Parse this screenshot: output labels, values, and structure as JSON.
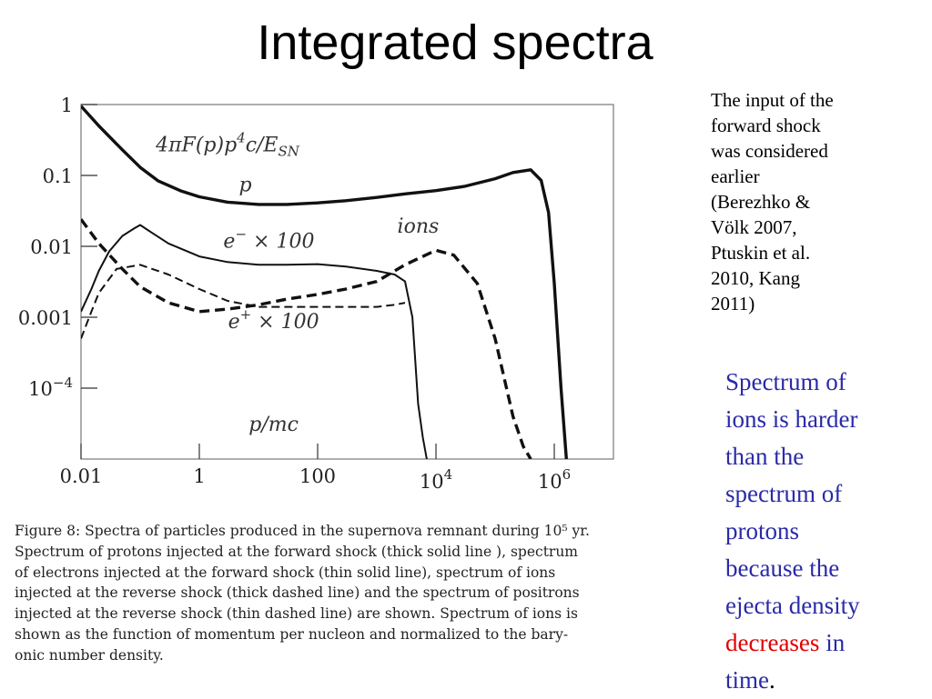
{
  "slide": {
    "title": "Integrated spectra",
    "side_note_lines": [
      "The input of the",
      "forward shock",
      "was considered",
      "earlier",
      "(Berezhko &",
      "Völk 2007,",
      "Ptuskin et al.",
      "2010, Kang",
      "2011)"
    ],
    "highlight_lines": [
      {
        "a": "Spectrum of",
        "b": ""
      },
      {
        "a": "ions is  harder",
        "b": ""
      },
      {
        "a": "than the",
        "b": ""
      },
      {
        "a": "spectrum of",
        "b": ""
      },
      {
        "a": "protons",
        "b": ""
      },
      {
        "a": "because the",
        "b": ""
      },
      {
        "a": "ejecta density",
        "b": ""
      }
    ],
    "highlight_red": "decreases",
    "highlight_after_red": " in",
    "highlight_last": "time",
    "highlight_period": ".",
    "colors": {
      "highlight": "#2a2aa8",
      "emphasis": "#e00000"
    }
  },
  "caption_lines": [
    "Figure 8: Spectra of particles produced in the supernova remnant during 10⁵ yr.",
    "Spectrum of protons injected at the forward shock (thick solid line ), spectrum",
    "of electrons injected at the forward shock (thin solid line), spectrum of ions",
    "injected at the reverse shock (thick dashed line) and the spectrum of positrons",
    "injected at the reverse shock (thin dashed line) are shown. Spectrum of ions is",
    "shown as the function of momentum per nucleon and normalized to the bary-",
    "onic number density."
  ],
  "chart_data": {
    "type": "line",
    "title": "",
    "xlabel": "p/mc",
    "ylabel": "4πF(p)p⁴c/E_SN",
    "xscale": "log",
    "yscale": "log",
    "xlim": [
      0.01,
      10000000
    ],
    "ylim": [
      1e-05,
      1
    ],
    "x_ticks": [
      {
        "value": 0.01,
        "label": "0.01"
      },
      {
        "value": 1,
        "label": "1"
      },
      {
        "value": 100,
        "label": "100"
      },
      {
        "value": 10000,
        "label": "10",
        "sup": "4"
      },
      {
        "value": 1000000,
        "label": "10",
        "sup": "6"
      }
    ],
    "y_ticks": [
      {
        "value": 1,
        "label": "1"
      },
      {
        "value": 0.1,
        "label": "0.1"
      },
      {
        "value": 0.01,
        "label": "0.01"
      },
      {
        "value": 0.001,
        "label": "0.001"
      },
      {
        "value": 0.0001,
        "label": "10",
        "sup": "−4"
      }
    ],
    "annotations": [
      {
        "text": "4πF(p)p",
        "sup": "4",
        "rest": "c/E",
        "sub": "SN",
        "x": 3,
        "y": 0.22
      },
      {
        "text": "p",
        "x": 6,
        "y": 0.06
      },
      {
        "text": "ions",
        "x": 5000,
        "y": 0.0155
      },
      {
        "text": "e",
        "sup": "−",
        "rest": "  × 100",
        "x": 15,
        "y": 0.0096
      },
      {
        "text": "e",
        "sup": "+",
        "rest": "  × 100",
        "x": 18,
        "y": 0.0007
      },
      {
        "text": "p/mc",
        "x": 18,
        "y": 2.5e-05
      }
    ],
    "series": [
      {
        "style": "thick-solid",
        "x": [
          0.01,
          0.02,
          0.05,
          0.1,
          0.2,
          0.5,
          1,
          3,
          10,
          30,
          100,
          300,
          1000,
          3000,
          10000,
          30000,
          100000,
          200000,
          400000,
          600000,
          800000,
          1000000,
          1300000,
          1600000
        ],
        "y": [
          0.95,
          0.5,
          0.23,
          0.13,
          0.084,
          0.06,
          0.05,
          0.042,
          0.039,
          0.039,
          0.041,
          0.044,
          0.049,
          0.055,
          0.061,
          0.07,
          0.09,
          0.11,
          0.12,
          0.085,
          0.03,
          0.003,
          0.0001,
          1e-05
        ]
      },
      {
        "style": "thin-solid",
        "x": [
          0.01,
          0.015,
          0.02,
          0.03,
          0.05,
          0.08,
          0.1,
          0.15,
          0.3,
          1,
          3,
          10,
          30,
          100,
          300,
          1000,
          2000,
          3000,
          4000,
          5000,
          6000,
          7000
        ],
        "y": [
          0.0012,
          0.0025,
          0.0045,
          0.0085,
          0.014,
          0.018,
          0.02,
          0.016,
          0.011,
          0.0072,
          0.006,
          0.0055,
          0.0055,
          0.0056,
          0.0052,
          0.0045,
          0.004,
          0.0032,
          0.001,
          6e-05,
          2e-05,
          1e-05
        ]
      },
      {
        "style": "thick-dashed",
        "x": [
          0.01,
          0.02,
          0.05,
          0.1,
          0.3,
          1,
          3,
          10,
          30,
          100,
          300,
          1000,
          3000,
          10000,
          20000,
          50000,
          100000,
          200000,
          300000,
          400000
        ],
        "y": [
          0.024,
          0.011,
          0.0048,
          0.0027,
          0.0016,
          0.0012,
          0.0013,
          0.0015,
          0.0018,
          0.0021,
          0.0025,
          0.0032,
          0.0055,
          0.0088,
          0.0075,
          0.003,
          0.0005,
          4e-05,
          1.5e-05,
          1e-05
        ]
      },
      {
        "style": "thin-dashed",
        "x": [
          0.01,
          0.015,
          0.02,
          0.04,
          0.1,
          0.3,
          1,
          3,
          10,
          30,
          100,
          300,
          1000,
          2000,
          3000
        ],
        "y": [
          0.0005,
          0.0012,
          0.0022,
          0.0048,
          0.0055,
          0.004,
          0.0025,
          0.0017,
          0.0014,
          0.0014,
          0.0014,
          0.0014,
          0.0014,
          0.0015,
          0.0016
        ]
      }
    ]
  }
}
